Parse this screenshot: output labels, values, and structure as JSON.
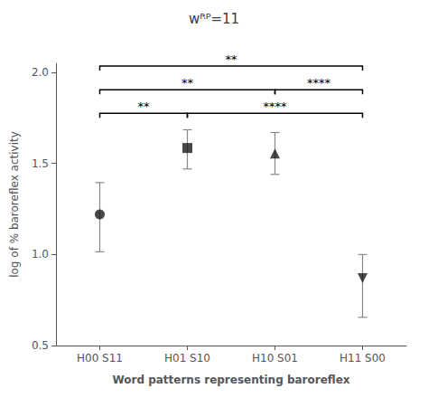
{
  "chart_data": {
    "type": "scatter",
    "title": "wᴿᴾ=11",
    "xlabel": "Word patterns representing baroreflex",
    "ylabel": "log of % baroreflex activity",
    "categories": [
      "H00 S11",
      "H01 S10",
      "H10 S01",
      "H11 S00"
    ],
    "color": "#1a1a1a",
    "series": [
      {
        "marker": "circle",
        "values": [
          1.22,
          null,
          null,
          null
        ],
        "errors_upper": [
          0.175,
          null,
          null,
          null
        ],
        "errors_lower": [
          0.205,
          null,
          null,
          null
        ]
      },
      {
        "marker": "square",
        "values": [
          null,
          1.585,
          null,
          null
        ],
        "errors_upper": [
          null,
          0.1,
          null,
          null
        ],
        "errors_lower": [
          null,
          0.115,
          null,
          null
        ]
      },
      {
        "marker": "triangle",
        "values": [
          null,
          null,
          1.555,
          null
        ],
        "errors_upper": [
          null,
          null,
          0.115,
          null
        ],
        "errors_lower": [
          null,
          null,
          0.115,
          null
        ]
      },
      {
        "marker": "triangle-down",
        "values": [
          null,
          null,
          null,
          0.87
        ],
        "errors_upper": [
          null,
          null,
          null,
          0.13
        ],
        "errors_lower": [
          null,
          null,
          null,
          0.215
        ]
      }
    ],
    "ylim": [
      0.5,
      2.05
    ],
    "yticks": [
      0.5,
      {
        "value": 1.0,
        "label": "1.0"
      },
      1.5,
      {
        "value": 2.0,
        "label": "2.0"
      }
    ],
    "grid": false,
    "significance_brackets": [
      {
        "x1": "H00 S11",
        "x2": "H01 S10",
        "y": 1.775,
        "label": "**"
      },
      {
        "x1": "H01 S10",
        "x2": "H11 S00",
        "y": 1.775,
        "label": "****"
      },
      {
        "x1": "H00 S11",
        "x2": "H10 S01",
        "y": 1.905,
        "label": "**"
      },
      {
        "x1": "H10 S01",
        "x2": "H11 S00",
        "y": 1.905,
        "label": "****"
      },
      {
        "x1": "H00 S11",
        "x2": "H11 S00",
        "y": 2.035,
        "label": "**"
      }
    ]
  }
}
